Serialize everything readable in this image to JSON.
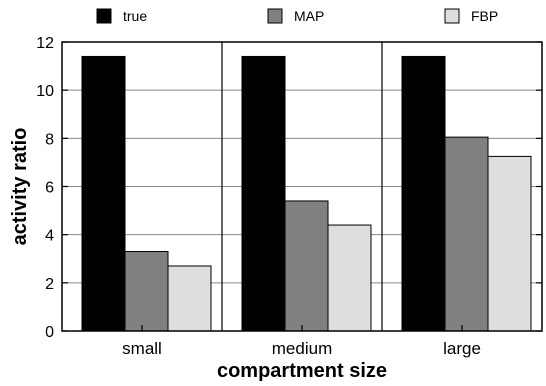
{
  "chart_data": {
    "type": "bar",
    "categories": [
      "small",
      "medium",
      "large"
    ],
    "series": [
      {
        "name": "true",
        "values": [
          11.4,
          11.4,
          11.4
        ],
        "color": "#000000"
      },
      {
        "name": "MAP",
        "values": [
          3.3,
          5.4,
          8.05
        ],
        "color": "#808080"
      },
      {
        "name": "FBP",
        "values": [
          2.7,
          4.4,
          7.25
        ],
        "color": "#dedede"
      }
    ],
    "title": "",
    "xlabel": "compartment  size",
    "ylabel": "activity  ratio",
    "ylim": [
      0,
      12
    ],
    "yticks": [
      0,
      2,
      4,
      6,
      8,
      10,
      12
    ],
    "grid": true,
    "legend_position": "top"
  }
}
